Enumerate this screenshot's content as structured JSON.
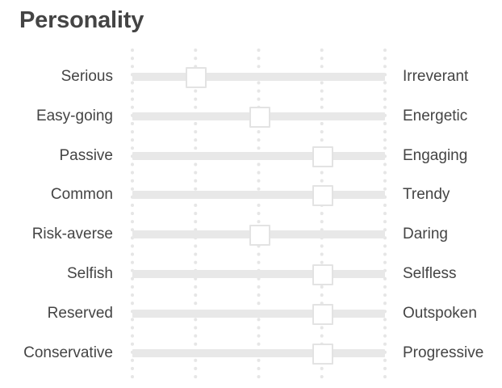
{
  "title": "Personality",
  "scale_stops": 5,
  "colors": {
    "text": "#444444",
    "track": "#e8e8e8",
    "thumb_border": "#e3e3e3",
    "guide_dots": "#e6e6e6"
  },
  "sliders": [
    {
      "left": "Serious",
      "right": "Irreverant",
      "value": 0.25
    },
    {
      "left": "Easy-going",
      "right": "Energetic",
      "value": 0.5
    },
    {
      "left": "Passive",
      "right": "Engaging",
      "value": 0.75
    },
    {
      "left": "Common",
      "right": "Trendy",
      "value": 0.75
    },
    {
      "left": "Risk-averse",
      "right": "Daring",
      "value": 0.5
    },
    {
      "left": "Selfish",
      "right": "Selfless",
      "value": 0.75
    },
    {
      "left": "Reserved",
      "right": "Outspoken",
      "value": 0.75
    },
    {
      "left": "Conservative",
      "right": "Progressive",
      "value": 0.75
    }
  ]
}
